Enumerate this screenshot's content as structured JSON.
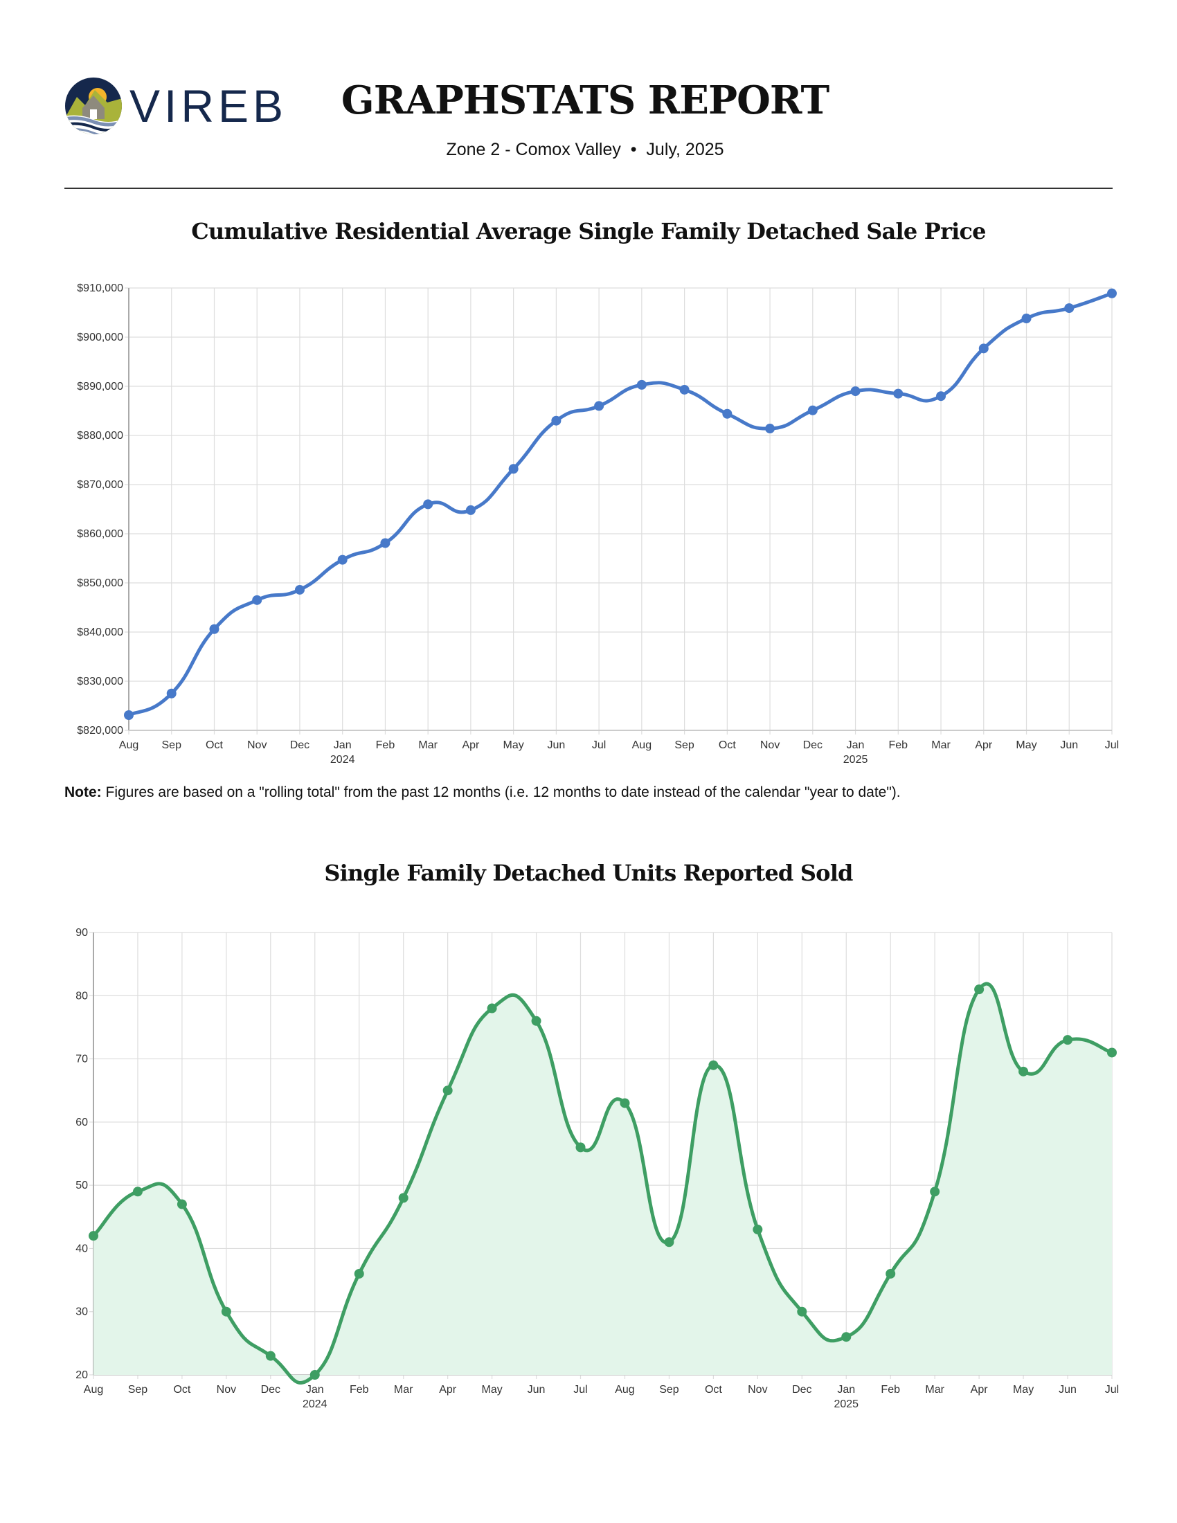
{
  "header": {
    "logo_text": "VIREB",
    "title": "GRAPHSTATS REPORT",
    "subtitle": "Zone 2 - Comox Valley  •  July, 2025"
  },
  "note": {
    "label": "Note:",
    "text": " Figures are based on a \"rolling total\" from the past 12 months (i.e. 12 months to date instead of the calendar \"year to date\")."
  },
  "colors": {
    "price_line": "#4779c9",
    "units_line": "#3e9e63",
    "units_fill": "#e3f5ea",
    "grid": "#dddddd",
    "logo_navy": "#15284c",
    "logo_green": "#a9b33a",
    "logo_gold": "#f4b52b"
  },
  "chart_data": [
    {
      "type": "line",
      "title": "Cumulative Residential Average Single Family Detached Sale Price",
      "xlabel": "",
      "ylabel": "",
      "categories": [
        "Aug",
        "Sep",
        "Oct",
        "Nov",
        "Dec",
        "Jan",
        "Feb",
        "Mar",
        "Apr",
        "May",
        "Jun",
        "Jul",
        "Aug",
        "Sep",
        "Oct",
        "Nov",
        "Dec",
        "Jan",
        "Feb",
        "Mar",
        "Apr",
        "May",
        "Jun",
        "Jul"
      ],
      "year_labels": [
        {
          "index": 5,
          "label": "2024"
        },
        {
          "index": 17,
          "label": "2025"
        }
      ],
      "values": [
        823100,
        827500,
        840600,
        846500,
        848600,
        854700,
        858100,
        866000,
        864800,
        873200,
        883000,
        886000,
        890300,
        889300,
        884400,
        881400,
        885100,
        889000,
        888500,
        888000,
        897700,
        903800,
        905900,
        908900
      ],
      "ylim": [
        820000,
        910000
      ],
      "yticks": [
        820000,
        830000,
        840000,
        850000,
        860000,
        870000,
        880000,
        890000,
        900000,
        910000
      ],
      "ytick_labels": [
        "$820,000",
        "$830,000",
        "$840,000",
        "$850,000",
        "$860,000",
        "$870,000",
        "$880,000",
        "$890,000",
        "$900,000",
        "$910,000"
      ],
      "grid": true,
      "legend": "none"
    },
    {
      "type": "area",
      "title": "Single Family Detached Units Reported Sold",
      "xlabel": "",
      "ylabel": "",
      "categories": [
        "Aug",
        "Sep",
        "Oct",
        "Nov",
        "Dec",
        "Jan",
        "Feb",
        "Mar",
        "Apr",
        "May",
        "Jun",
        "Jul",
        "Aug",
        "Sep",
        "Oct",
        "Nov",
        "Dec",
        "Jan",
        "Feb",
        "Mar",
        "Apr",
        "May",
        "Jun",
        "Jul"
      ],
      "year_labels": [
        {
          "index": 5,
          "label": "2024"
        },
        {
          "index": 17,
          "label": "2025"
        }
      ],
      "values": [
        42,
        49,
        47,
        30,
        23,
        20,
        36,
        48,
        65,
        78,
        76,
        56,
        63,
        41,
        69,
        43,
        30,
        26,
        36,
        49,
        81,
        68,
        73,
        71
      ],
      "ylim": [
        20,
        90
      ],
      "yticks": [
        20,
        30,
        40,
        50,
        60,
        70,
        80,
        90
      ],
      "ytick_labels": [
        "20",
        "30",
        "40",
        "50",
        "60",
        "70",
        "80",
        "90"
      ],
      "grid": true,
      "legend": "none"
    }
  ]
}
